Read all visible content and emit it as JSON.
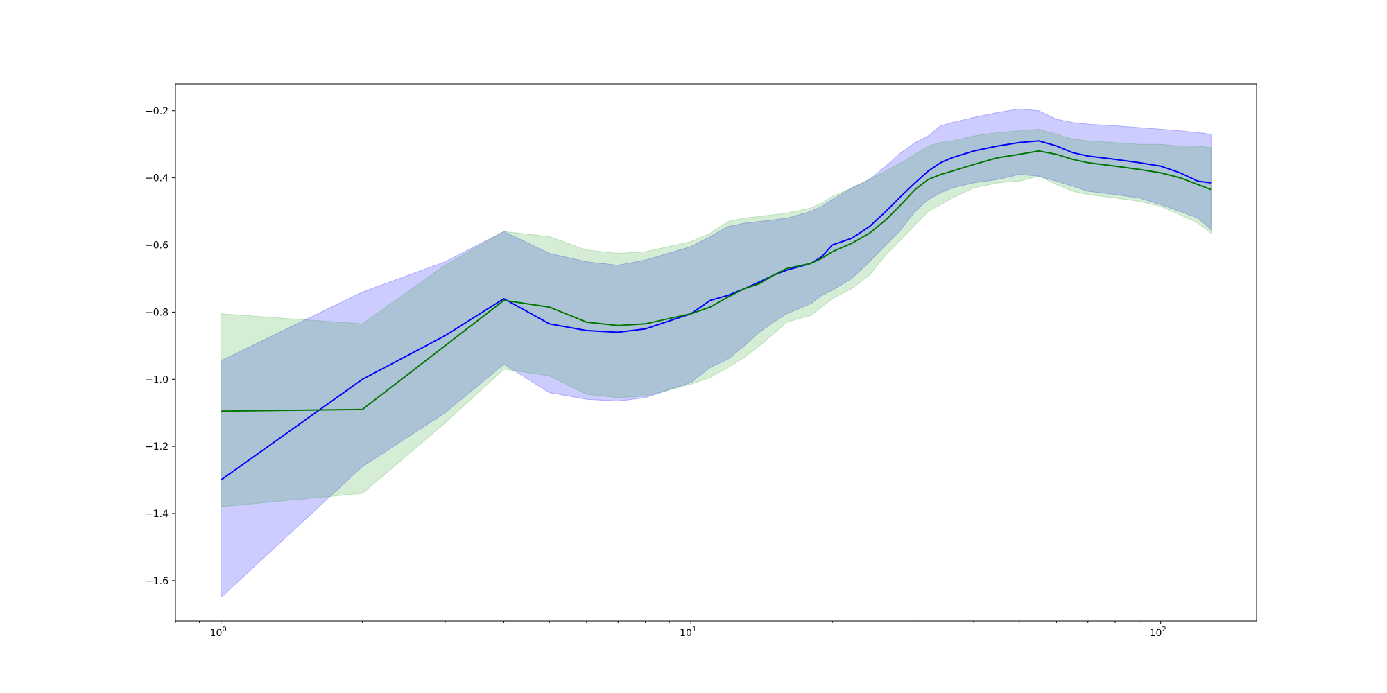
{
  "chart_data": {
    "type": "line",
    "title": "",
    "xlabel": "",
    "ylabel": "",
    "xscale": "log",
    "xlim": [
      0.8,
      160
    ],
    "ylim": [
      -1.72,
      -0.12
    ],
    "grid": false,
    "legend": "none",
    "x_ticks": [
      {
        "base": "10",
        "exp": "0",
        "value": 1
      },
      {
        "base": "10",
        "exp": "1",
        "value": 10
      },
      {
        "base": "10",
        "exp": "2",
        "value": 100
      }
    ],
    "y_ticks": [
      {
        "label": "−1.6",
        "value": -1.6
      },
      {
        "label": "−1.4",
        "value": -1.4
      },
      {
        "label": "−1.2",
        "value": -1.2
      },
      {
        "label": "−1.0",
        "value": -1.0
      },
      {
        "label": "−0.8",
        "value": -0.8
      },
      {
        "label": "−0.6",
        "value": -0.6
      },
      {
        "label": "−0.4",
        "value": -0.4
      },
      {
        "label": "−0.2",
        "value": -0.2
      }
    ],
    "x": [
      1,
      2,
      3,
      4,
      5,
      6,
      7,
      8,
      10,
      11,
      12,
      13,
      14,
      15,
      16,
      18,
      19,
      20,
      22,
      24,
      26,
      28,
      30,
      32,
      34,
      36,
      40,
      45,
      50,
      55,
      60,
      65,
      70,
      80,
      90,
      100,
      110,
      120,
      128
    ],
    "series": [
      {
        "color": "#0000ff",
        "band_color": "#0000ff",
        "values": [
          -1.3,
          -1.0,
          -0.87,
          -0.76,
          -0.835,
          -0.855,
          -0.86,
          -0.85,
          -0.805,
          -0.765,
          -0.75,
          -0.73,
          -0.71,
          -0.69,
          -0.675,
          -0.655,
          -0.635,
          -0.6,
          -0.58,
          -0.545,
          -0.5,
          -0.455,
          -0.415,
          -0.38,
          -0.355,
          -0.34,
          -0.32,
          -0.305,
          -0.295,
          -0.29,
          -0.305,
          -0.325,
          -0.335,
          -0.345,
          -0.355,
          -0.365,
          -0.385,
          -0.41,
          -0.415
        ],
        "lower": [
          -1.65,
          -1.26,
          -1.1,
          -0.955,
          -1.04,
          -1.06,
          -1.065,
          -1.055,
          -1.01,
          -0.965,
          -0.94,
          -0.9,
          -0.86,
          -0.83,
          -0.805,
          -0.775,
          -0.75,
          -0.735,
          -0.7,
          -0.65,
          -0.6,
          -0.555,
          -0.5,
          -0.465,
          -0.445,
          -0.43,
          -0.415,
          -0.405,
          -0.39,
          -0.395,
          -0.41,
          -0.425,
          -0.44,
          -0.45,
          -0.46,
          -0.48,
          -0.5,
          -0.52,
          -0.555
        ],
        "upper": [
          -0.945,
          -0.74,
          -0.65,
          -0.56,
          -0.625,
          -0.65,
          -0.66,
          -0.645,
          -0.605,
          -0.575,
          -0.545,
          -0.535,
          -0.53,
          -0.525,
          -0.52,
          -0.5,
          -0.485,
          -0.465,
          -0.43,
          -0.405,
          -0.365,
          -0.325,
          -0.295,
          -0.275,
          -0.245,
          -0.235,
          -0.22,
          -0.205,
          -0.195,
          -0.2,
          -0.225,
          -0.235,
          -0.24,
          -0.245,
          -0.25,
          -0.255,
          -0.26,
          -0.265,
          -0.27
        ]
      },
      {
        "color": "#007700",
        "band_color": "#2ca02c",
        "values": [
          -1.095,
          -1.09,
          -0.9,
          -0.765,
          -0.785,
          -0.83,
          -0.84,
          -0.835,
          -0.805,
          -0.785,
          -0.755,
          -0.73,
          -0.715,
          -0.69,
          -0.67,
          -0.655,
          -0.64,
          -0.62,
          -0.595,
          -0.565,
          -0.525,
          -0.48,
          -0.435,
          -0.405,
          -0.39,
          -0.38,
          -0.36,
          -0.34,
          -0.33,
          -0.32,
          -0.33,
          -0.345,
          -0.355,
          -0.365,
          -0.375,
          -0.385,
          -0.4,
          -0.42,
          -0.435
        ],
        "lower": [
          -1.38,
          -1.34,
          -1.13,
          -0.97,
          -0.99,
          -1.045,
          -1.055,
          -1.05,
          -1.015,
          -0.995,
          -0.965,
          -0.935,
          -0.9,
          -0.865,
          -0.83,
          -0.81,
          -0.785,
          -0.76,
          -0.73,
          -0.69,
          -0.63,
          -0.585,
          -0.54,
          -0.5,
          -0.48,
          -0.46,
          -0.43,
          -0.415,
          -0.41,
          -0.395,
          -0.42,
          -0.44,
          -0.45,
          -0.46,
          -0.47,
          -0.485,
          -0.51,
          -0.535,
          -0.565
        ],
        "upper": [
          -0.805,
          -0.835,
          -0.66,
          -0.56,
          -0.575,
          -0.615,
          -0.625,
          -0.62,
          -0.59,
          -0.565,
          -0.53,
          -0.52,
          -0.515,
          -0.51,
          -0.505,
          -0.49,
          -0.475,
          -0.455,
          -0.43,
          -0.405,
          -0.38,
          -0.355,
          -0.33,
          -0.305,
          -0.295,
          -0.29,
          -0.275,
          -0.265,
          -0.26,
          -0.255,
          -0.27,
          -0.285,
          -0.29,
          -0.295,
          -0.3,
          -0.3,
          -0.305,
          -0.305,
          -0.31
        ]
      }
    ]
  }
}
